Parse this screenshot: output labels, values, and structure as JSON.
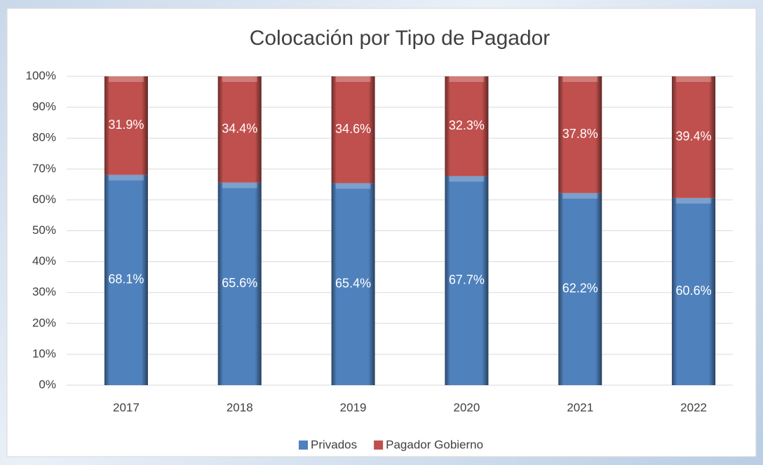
{
  "chart_data": {
    "type": "stacked_bar",
    "title": "Colocación por Tipo de Pagador",
    "categories": [
      "2017",
      "2018",
      "2019",
      "2020",
      "2021",
      "2022"
    ],
    "series": [
      {
        "name": "Privados",
        "color": "#4f81bd",
        "values": [
          68.1,
          65.6,
          65.4,
          67.7,
          62.2,
          60.6
        ],
        "value_labels": [
          "68.1%",
          "65.6%",
          "65.4%",
          "67.7%",
          "62.2%",
          "60.6%"
        ]
      },
      {
        "name": "Pagador Gobierno",
        "color": "#c0504d",
        "values": [
          31.9,
          34.4,
          34.6,
          32.3,
          37.8,
          39.4
        ],
        "value_labels": [
          "31.9%",
          "34.4%",
          "34.6%",
          "32.3%",
          "37.8%",
          "39.4%"
        ]
      }
    ],
    "ylim": [
      0,
      100
    ],
    "yticks": [
      {
        "value": 0,
        "label": "0%"
      },
      {
        "value": 10,
        "label": "10%"
      },
      {
        "value": 20,
        "label": "20%"
      },
      {
        "value": 30,
        "label": "30%"
      },
      {
        "value": 40,
        "label": "40%"
      },
      {
        "value": 50,
        "label": "50%"
      },
      {
        "value": 60,
        "label": "60%"
      },
      {
        "value": 70,
        "label": "70%"
      },
      {
        "value": 80,
        "label": "80%"
      },
      {
        "value": 90,
        "label": "90%"
      },
      {
        "value": 100,
        "label": "100%"
      }
    ],
    "grid": true,
    "legend": "bottom"
  }
}
